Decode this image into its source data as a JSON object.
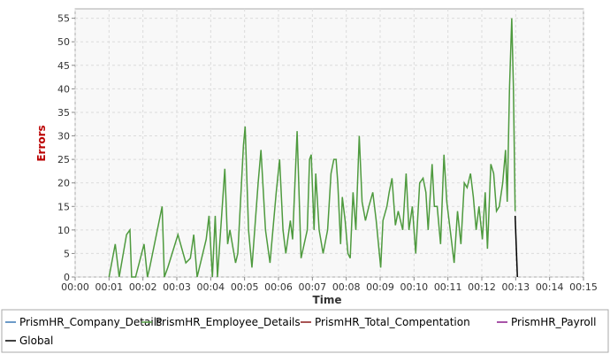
{
  "chart_data": {
    "type": "line",
    "x_label": "Time",
    "y_label": "Errors",
    "xlim": [
      0,
      900
    ],
    "ylim": [
      0,
      57
    ],
    "xticks": [
      {
        "value": 0,
        "label": "00:00"
      },
      {
        "value": 60,
        "label": "00:01"
      },
      {
        "value": 120,
        "label": "00:02"
      },
      {
        "value": 180,
        "label": "00:03"
      },
      {
        "value": 240,
        "label": "00:04"
      },
      {
        "value": 300,
        "label": "00:05"
      },
      {
        "value": 360,
        "label": "00:06"
      },
      {
        "value": 420,
        "label": "00:07"
      },
      {
        "value": 480,
        "label": "00:08"
      },
      {
        "value": 540,
        "label": "00:09"
      },
      {
        "value": 600,
        "label": "00:10"
      },
      {
        "value": 660,
        "label": "00:11"
      },
      {
        "value": 720,
        "label": "00:12"
      },
      {
        "value": 780,
        "label": "00:13"
      },
      {
        "value": 840,
        "label": "00:14"
      },
      {
        "value": 900,
        "label": "00:15"
      }
    ],
    "yticks": [
      0,
      5,
      10,
      15,
      20,
      25,
      30,
      35,
      40,
      45,
      50,
      55
    ],
    "grid": true,
    "series": [
      {
        "name": "PrismHR_Company_Details",
        "color": "#3a78b5",
        "x": [],
        "values": []
      },
      {
        "name": "PrismHR_Employee_Details",
        "color": "#4e9a3e",
        "x": [
          60,
          71,
          78,
          91,
          97,
          100,
          107,
          122,
          128,
          132,
          154,
          158,
          164,
          182,
          196,
          204,
          210,
          216,
          232,
          237,
          243,
          248,
          252,
          265,
          270,
          274,
          284,
          288,
          298,
          301,
          307,
          313,
          324,
          329,
          337,
          345,
          356,
          362,
          368,
          373,
          381,
          385,
          393,
          400,
          411,
          415,
          418,
          423,
          426,
          432,
          439,
          447,
          453,
          458,
          462,
          465,
          470,
          473,
          478,
          483,
          487,
          492,
          497,
          503,
          508,
          514,
          520,
          527,
          533,
          541,
          545,
          552,
          556,
          561,
          567,
          572,
          580,
          586,
          591,
          597,
          603,
          610,
          616,
          621,
          625,
          632,
          636,
          641,
          647,
          653,
          658,
          664,
          671,
          677,
          683,
          689,
          694,
          700,
          705,
          710,
          715,
          721,
          726,
          730,
          736,
          741,
          746,
          751,
          757,
          762,
          765,
          769,
          773,
          776,
          779
        ],
        "values": [
          0,
          7,
          0,
          9,
          10,
          0,
          0,
          7,
          0,
          2,
          15,
          0,
          2,
          9,
          3,
          4,
          9,
          0,
          8,
          13,
          0,
          13,
          0,
          23,
          7,
          10,
          3,
          5,
          28,
          32,
          10,
          2,
          20,
          27,
          10,
          3,
          18,
          25,
          10,
          5,
          12,
          8,
          31,
          4,
          10,
          25,
          26,
          10,
          22,
          10,
          5,
          10,
          22,
          25,
          25,
          20,
          7,
          17,
          12,
          5,
          4,
          18,
          10,
          30,
          16,
          12,
          15,
          18,
          12,
          2,
          12,
          15,
          18,
          21,
          11,
          14,
          10,
          22,
          10,
          15,
          5,
          20,
          21,
          18,
          10,
          24,
          15,
          15,
          7,
          26,
          16,
          10,
          3,
          14,
          7,
          20,
          19,
          22,
          17,
          10,
          15,
          8,
          18,
          6,
          24,
          22,
          14,
          15,
          20,
          27,
          16,
          40,
          55,
          40,
          14
        ]
      },
      {
        "name": "PrismHR_Total_Compentation",
        "color": "#8b1a1a",
        "x": [],
        "values": []
      },
      {
        "name": "PrismHR_Payroll",
        "color": "#8b1a8b",
        "x": [],
        "values": []
      },
      {
        "name": "Global",
        "color": "#000000",
        "x": [
          779,
          783
        ],
        "values": [
          13,
          0
        ]
      }
    ]
  }
}
